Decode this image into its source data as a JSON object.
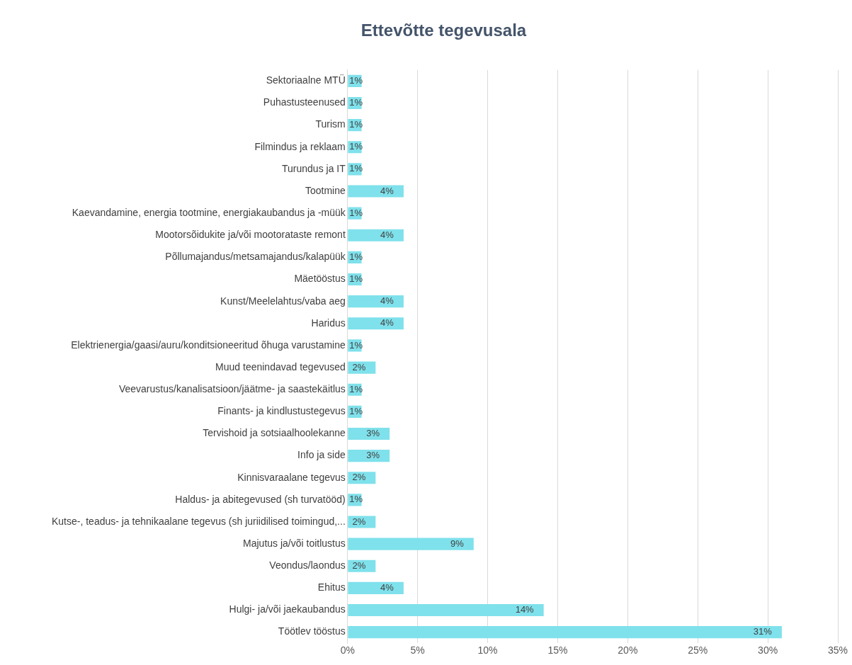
{
  "chart_data": {
    "type": "bar",
    "orientation": "horizontal",
    "title": "Ettevõtte tegevusala",
    "categories": [
      "Sektoriaalne MTÜ",
      "Puhastusteenused",
      "Turism",
      "Filmindus ja reklaam",
      "Turundus ja IT",
      "Tootmine",
      "Kaevandamine, energia tootmine, energiakaubandus ja -müük",
      "Mootorsõidukite ja/või mootorataste remont",
      "Põllumajandus/metsamajandus/kalapüük",
      "Mäetööstus",
      "Kunst/Meelelahtus/vaba aeg",
      "Haridus",
      "Elektrienergia/gaasi/auru/konditsioneeritud õhuga varustamine",
      "Muud teenindavad tegevused",
      "Veevarustus/kanalisatsioon/jäätme- ja saastekäitlus",
      "Finants- ja kindlustustegevus",
      "Tervishoid ja sotsiaalhoolekanne",
      "Info ja side",
      "Kinnisvaraalane tegevus",
      "Haldus- ja abitegevused (sh turvatööd)",
      "Kutse-, teadus- ja tehnikaalane tegevus (sh juriidilised toimingud,...",
      "Majutus ja/või toitlustus",
      "Veondus/laondus",
      "Ehitus",
      "Hulgi- ja/või jaekaubandus",
      "Töötlev tööstus"
    ],
    "values": [
      1,
      1,
      1,
      1,
      1,
      4,
      1,
      4,
      1,
      1,
      4,
      4,
      1,
      2,
      1,
      1,
      3,
      3,
      2,
      1,
      2,
      9,
      2,
      4,
      14,
      31
    ],
    "value_labels": [
      "1%",
      "1%",
      "1%",
      "1%",
      "1%",
      "4%",
      "1%",
      "4%",
      "1%",
      "1%",
      "4%",
      "4%",
      "1%",
      "2%",
      "1%",
      "1%",
      "3%",
      "3%",
      "2%",
      "1%",
      "2%",
      "9%",
      "2%",
      "4%",
      "14%",
      "31%"
    ],
    "color": "#7fe1eb",
    "xlim": [
      0,
      35
    ],
    "xticks": [
      {
        "value": 0,
        "label": "0%"
      },
      {
        "value": 5,
        "label": "5%"
      },
      {
        "value": 10,
        "label": "10%"
      },
      {
        "value": 15,
        "label": "15%"
      },
      {
        "value": 20,
        "label": "20%"
      },
      {
        "value": 25,
        "label": "25%"
      },
      {
        "value": 30,
        "label": "30%"
      },
      {
        "value": 35,
        "label": "35%"
      }
    ],
    "grid": "x",
    "legend": false
  }
}
